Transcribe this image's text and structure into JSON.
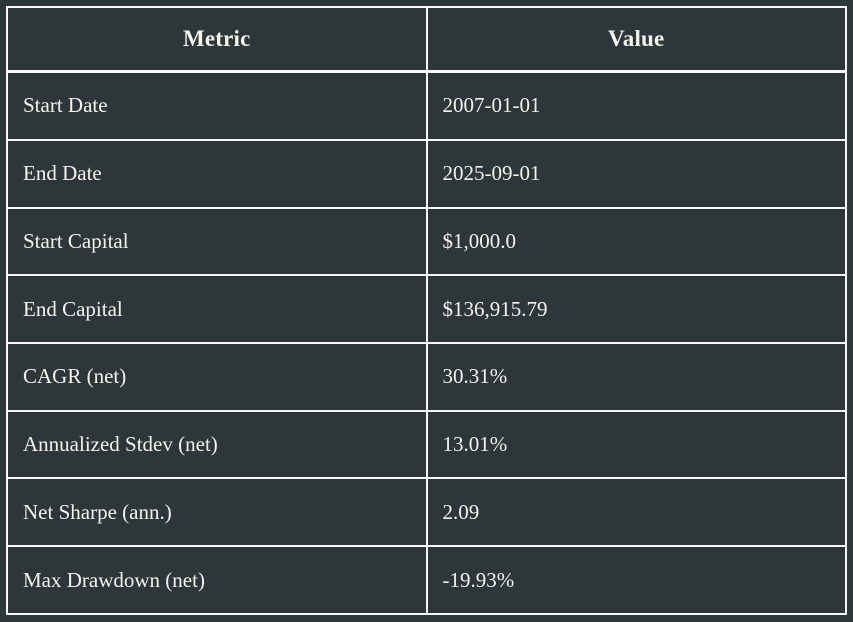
{
  "colors": {
    "background": "#2d3638",
    "border": "#f7f8f8",
    "text": "#f3f2ec"
  },
  "table": {
    "headers": {
      "metric": "Metric",
      "value": "Value"
    },
    "rows": [
      {
        "metric": "Start Date",
        "value": "2007-01-01"
      },
      {
        "metric": "End Date",
        "value": "2025-09-01"
      },
      {
        "metric": "Start Capital",
        "value": "$1,000.0"
      },
      {
        "metric": "End Capital",
        "value": "$136,915.79"
      },
      {
        "metric": "CAGR (net)",
        "value": "30.31%"
      },
      {
        "metric": "Annualized Stdev (net)",
        "value": "13.01%"
      },
      {
        "metric": "Net Sharpe (ann.)",
        "value": "2.09"
      },
      {
        "metric": "Max Drawdown (net)",
        "value": "-19.93%"
      }
    ]
  }
}
